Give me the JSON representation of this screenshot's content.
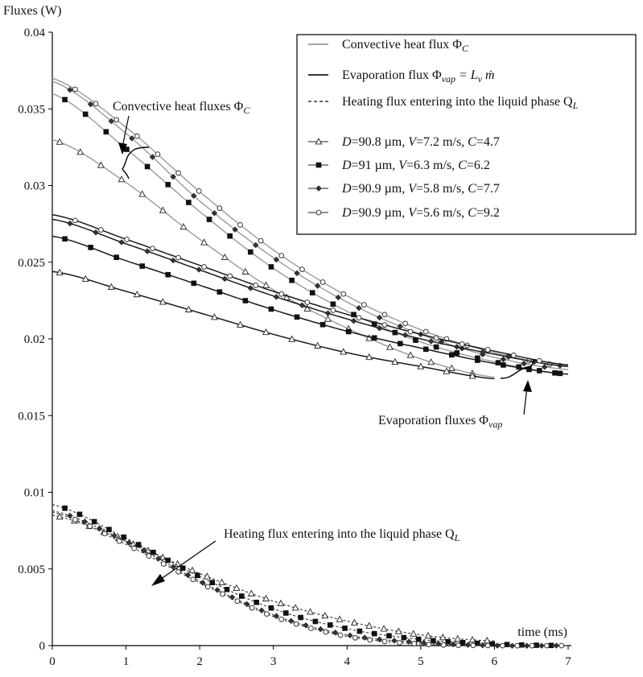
{
  "chart_data": {
    "type": "line",
    "ylabel": "Fluxes (W)",
    "xlabel": "time (ms)",
    "xlim": [
      0,
      7
    ],
    "ylim": [
      0,
      0.04
    ],
    "x_ticks": [
      "0",
      "1",
      "2",
      "3",
      "4",
      "5",
      "6",
      "7"
    ],
    "y_ticks": [
      "0",
      "0.005",
      "0.01",
      "0.015",
      "0.02",
      "0.025",
      "0.03",
      "0.035",
      "0.04"
    ],
    "x_tick_values": [
      0,
      1,
      2,
      3,
      4,
      5,
      6,
      7
    ],
    "y_tick_values": [
      0,
      0.005,
      0.01,
      0.015,
      0.02,
      0.025,
      0.03,
      0.035,
      0.04
    ],
    "grid": false,
    "legend_position": "top-right",
    "legend": {
      "line_types": [
        {
          "style": "convective",
          "label": "Convective heat flux Φ",
          "sub": "C",
          "eq": ""
        },
        {
          "style": "evaporation",
          "label": "Evaporation flux Φ",
          "sub": "vap",
          "eq": " = L",
          "eq_sub": "v",
          "eq_end": " ṁ"
        },
        {
          "style": "heating",
          "label": "Heating flux entering into the liquid phase Q",
          "sub": "L"
        }
      ],
      "marker_entries": [
        {
          "marker": "triangle",
          "D": "90.8 µm",
          "V": "7.2 m/s",
          "C": "4.7"
        },
        {
          "marker": "square",
          "D": "91 µm",
          "V": "6.3 m/s",
          "C": "6.2"
        },
        {
          "marker": "diamond",
          "D": "90.9 µm",
          "V": "5.8 m/s",
          "C": "7.7"
        },
        {
          "marker": "circle",
          "D": "90.9 µm",
          "V": "5.6 m/s",
          "C": "9.2"
        }
      ]
    },
    "annotations": [
      {
        "text": "Convective heat fluxes Φ",
        "sub": "C"
      },
      {
        "text": "Evaporation fluxes Φ",
        "sub": "vap"
      },
      {
        "text": "Heating flux entering into the liquid phase Q",
        "sub": "L"
      }
    ],
    "series": [
      {
        "group": "convective",
        "marker": "triangle",
        "x": [
          0,
          1,
          2,
          3,
          4,
          5,
          6
        ],
        "y": [
          0.033,
          0.0302,
          0.0265,
          0.0232,
          0.0207,
          0.0187,
          0.0175
        ]
      },
      {
        "group": "convective",
        "marker": "square",
        "x": [
          0,
          1,
          2,
          3,
          4,
          5,
          6,
          7
        ],
        "y": [
          0.036,
          0.0324,
          0.0283,
          0.0246,
          0.0218,
          0.0198,
          0.0185,
          0.0177
        ]
      },
      {
        "group": "convective",
        "marker": "diamond",
        "x": [
          0,
          1,
          2,
          3,
          4,
          5,
          6,
          7
        ],
        "y": [
          0.0368,
          0.0334,
          0.029,
          0.0253,
          0.0224,
          0.0203,
          0.0188,
          0.018
        ]
      },
      {
        "group": "convective",
        "marker": "circle",
        "x": [
          0,
          1,
          2,
          3,
          4,
          5,
          6,
          7
        ],
        "y": [
          0.037,
          0.0338,
          0.0296,
          0.0258,
          0.0228,
          0.0206,
          0.0191,
          0.0182
        ]
      },
      {
        "group": "evaporation",
        "marker": "triangle",
        "x": [
          0,
          1,
          2,
          3,
          4,
          5,
          6
        ],
        "y": [
          0.0244,
          0.0231,
          0.0217,
          0.0203,
          0.0191,
          0.0182,
          0.0174
        ]
      },
      {
        "group": "evaporation",
        "marker": "square",
        "x": [
          0,
          1,
          2,
          3,
          4,
          5,
          6,
          7
        ],
        "y": [
          0.0267,
          0.0251,
          0.0235,
          0.0219,
          0.0205,
          0.0194,
          0.0184,
          0.0177
        ]
      },
      {
        "group": "evaporation",
        "marker": "diamond",
        "x": [
          0,
          1,
          2,
          3,
          4,
          5,
          6,
          7
        ],
        "y": [
          0.0278,
          0.0262,
          0.0245,
          0.0228,
          0.0213,
          0.02,
          0.019,
          0.0182
        ]
      },
      {
        "group": "evaporation",
        "marker": "circle",
        "x": [
          0,
          1,
          2,
          3,
          4,
          5,
          6,
          7
        ],
        "y": [
          0.0281,
          0.0265,
          0.0248,
          0.0231,
          0.0216,
          0.0203,
          0.0192,
          0.0183
        ]
      },
      {
        "group": "heating",
        "marker": "triangle",
        "x": [
          0,
          1,
          2,
          3,
          4,
          5,
          6
        ],
        "y": [
          0.0085,
          0.0068,
          0.0047,
          0.0029,
          0.0016,
          0.0007,
          0.0003
        ]
      },
      {
        "group": "heating",
        "marker": "square",
        "x": [
          0,
          1,
          2,
          3,
          4,
          5,
          6,
          7
        ],
        "y": [
          0.0092,
          0.007,
          0.0045,
          0.0024,
          0.0011,
          0.0004,
          0.0001,
          0
        ]
      },
      {
        "group": "heating",
        "marker": "diamond",
        "x": [
          0,
          1,
          2,
          3,
          4,
          5,
          6,
          7
        ],
        "y": [
          0.0088,
          0.0068,
          0.0042,
          0.002,
          0.0007,
          0.0002,
          0,
          0
        ]
      },
      {
        "group": "heating",
        "marker": "circle",
        "x": [
          0,
          1,
          2,
          3,
          4,
          5,
          6,
          7
        ],
        "y": [
          0.0087,
          0.0066,
          0.0041,
          0.0019,
          0.0006,
          0.0001,
          0,
          0
        ]
      }
    ]
  },
  "colors": {
    "convective": "#9a9a9a",
    "evaporation": "#1a1a1a",
    "heating": "#333333",
    "axis": "#000000"
  }
}
